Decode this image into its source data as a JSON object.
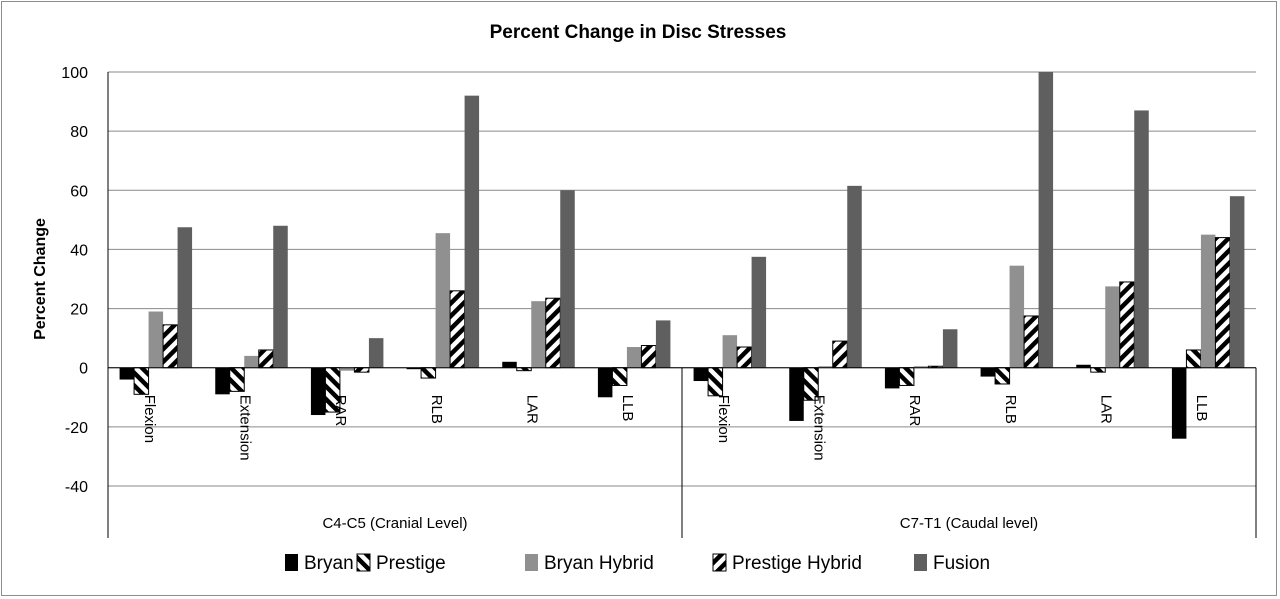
{
  "chart_data": {
    "type": "bar",
    "title": "Percent Change in Disc Stresses",
    "xlabel": "",
    "ylabel": "Percent Change",
    "ylim": [
      -40,
      100
    ],
    "yticks": [
      -40,
      -20,
      0,
      20,
      40,
      60,
      80,
      100
    ],
    "grid": true,
    "legend_position": "bottom",
    "groups": [
      {
        "label": "C4-C5 (Cranial Level)",
        "categories": [
          "Flexion",
          "Extension",
          "RAR",
          "RLB",
          "LAR",
          "LLB"
        ]
      },
      {
        "label": "C7-T1 (Caudal level)",
        "categories": [
          "Flexion",
          "Extension",
          "RAR",
          "RLB",
          "LAR",
          "LLB"
        ]
      }
    ],
    "categories": [
      "Flexion",
      "Extension",
      "RAR",
      "RLB",
      "LAR",
      "LLB",
      "Flexion",
      "Extension",
      "RAR",
      "RLB",
      "LAR",
      "LLB"
    ],
    "series": [
      {
        "name": "Bryan",
        "color": "#000000",
        "pattern": "solid",
        "values": [
          -4,
          -9,
          -16,
          -0.5,
          2,
          -10,
          -4.5,
          -18,
          -7,
          -3,
          1,
          -24
        ]
      },
      {
        "name": "Prestige",
        "color": "#000000",
        "pattern": "diagonal-up",
        "values": [
          -9,
          -8,
          -15,
          -3.5,
          -1,
          -6,
          -9.5,
          -11,
          -6,
          -5.5,
          -1.5,
          6
        ]
      },
      {
        "name": "Bryan Hybrid",
        "color": "#909090",
        "pattern": "solid",
        "values": [
          19,
          4,
          -1,
          45.5,
          22.5,
          7,
          11,
          0.5,
          0.5,
          34.5,
          27.5,
          45
        ]
      },
      {
        "name": "Prestige Hybrid",
        "color": "#000000",
        "pattern": "diagonal-down",
        "values": [
          14.5,
          6,
          -1.5,
          26,
          23.5,
          7.5,
          7,
          9,
          0.5,
          17.5,
          29,
          44
        ]
      },
      {
        "name": "Fusion",
        "color": "#5f5f5f",
        "pattern": "solid",
        "values": [
          47.5,
          48,
          10,
          92,
          60,
          16,
          37.5,
          61.5,
          13,
          100,
          87,
          58
        ]
      }
    ]
  }
}
